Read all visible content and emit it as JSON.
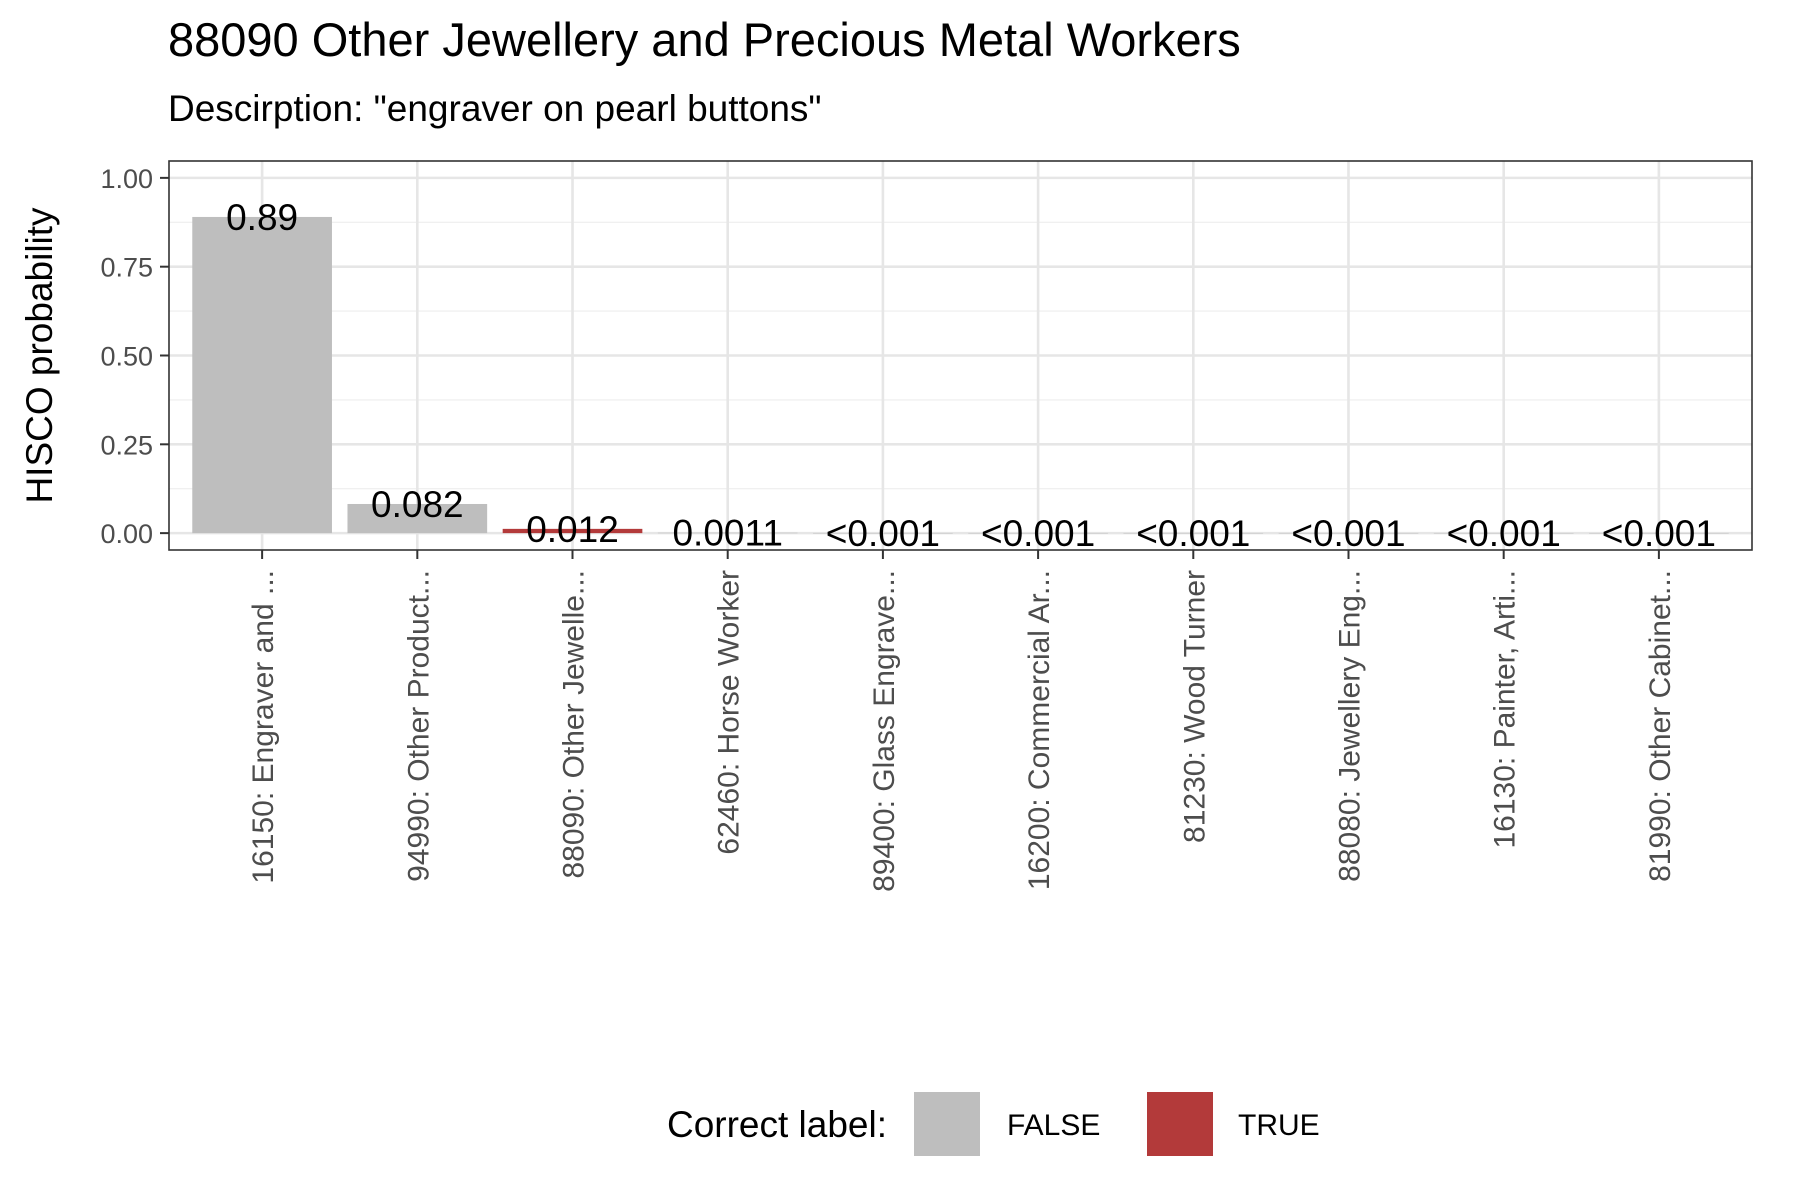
{
  "chart_data": {
    "type": "bar",
    "title": "88090 Other Jewellery and Precious Metal Workers",
    "subtitle": "Descirption: \"engraver on pearl buttons\"",
    "xlabel": "",
    "ylabel": "HISCO probability",
    "ylim": [
      0,
      1.05
    ],
    "yticks": [
      "0.00",
      "0.25",
      "0.50",
      "0.75",
      "1.00"
    ],
    "grid": true,
    "legend_position": "bottom",
    "categories": [
      "16150: Engraver and ...",
      "94990: Other Product...",
      "88090: Other Jewelle...",
      "62460: Horse Worker",
      "89400: Glass Engrave...",
      "16200: Commercial Ar...",
      "81230: Wood Turner",
      "88080: Jewellery Eng...",
      "16130: Painter, Arti...",
      "81990: Other Cabinet..."
    ],
    "values": [
      0.89,
      0.082,
      0.012,
      0.0011,
      0.0005,
      0.0005,
      0.0005,
      0.0005,
      0.0005,
      0.0005
    ],
    "data_labels": [
      "0.89",
      "0.082",
      "0.012",
      "0.0011",
      "<0.001",
      "<0.001",
      "<0.001",
      "<0.001",
      "<0.001",
      "<0.001"
    ],
    "correct": [
      false,
      false,
      true,
      false,
      false,
      false,
      false,
      false,
      false,
      false
    ],
    "legend": {
      "title": "Correct label:",
      "entries": [
        {
          "label": "FALSE",
          "color": "#bebebe"
        },
        {
          "label": "TRUE",
          "color": "#b33a3a"
        }
      ]
    }
  }
}
